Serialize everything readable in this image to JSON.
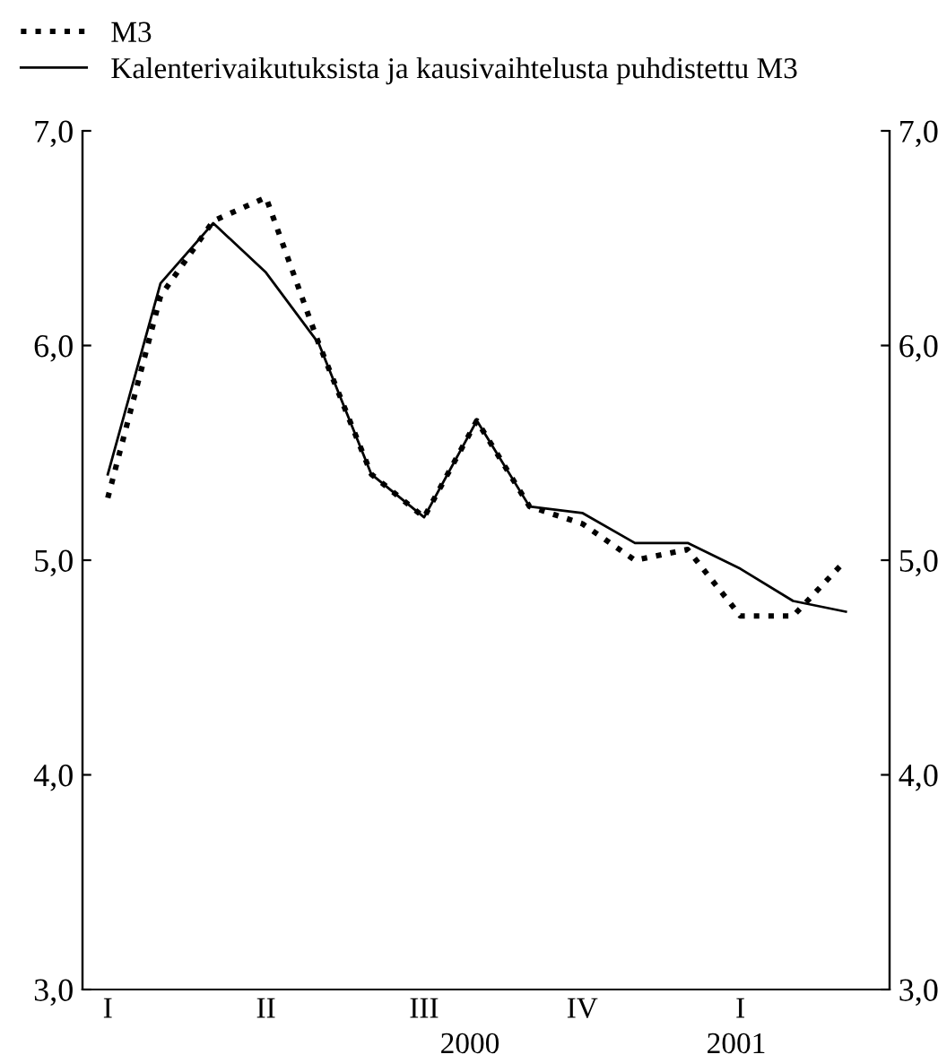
{
  "chart_data": {
    "type": "line",
    "categories": [
      "I",
      null,
      null,
      "II",
      null,
      null,
      "III",
      null,
      null,
      "IV",
      null,
      null,
      "I",
      null,
      null
    ],
    "series": [
      {
        "name": "M3",
        "color": "#000000",
        "line_style": "dotted",
        "values": [
          5.29,
          6.23,
          6.58,
          6.69,
          6.01,
          5.4,
          5.2,
          5.65,
          5.25,
          5.17,
          5.0,
          5.05,
          4.74,
          4.74,
          5.0
        ]
      },
      {
        "name": "Kalenterivaikutuksista ja kausivaihtelusta puhdistettu M3",
        "color": "#000000",
        "line_style": "solid",
        "values": [
          5.4,
          6.29,
          6.57,
          6.34,
          6.01,
          5.4,
          5.2,
          5.65,
          5.25,
          5.22,
          5.08,
          5.08,
          4.96,
          4.81,
          4.76
        ]
      }
    ],
    "ylim": [
      3,
      7
    ],
    "yticks": [
      {
        "value": 3,
        "label": "3,0"
      },
      {
        "value": 4,
        "label": "4,0"
      },
      {
        "value": 5,
        "label": "5,0"
      },
      {
        "value": 6,
        "label": "6,0"
      },
      {
        "value": 7,
        "label": "7,0"
      }
    ],
    "y2lim": [
      3,
      7
    ],
    "y2ticks": [
      {
        "value": 3,
        "label": "3,0"
      },
      {
        "value": 4,
        "label": "4,0"
      },
      {
        "value": 5,
        "label": "5,0"
      },
      {
        "value": 6,
        "label": "6,0"
      },
      {
        "value": 7,
        "label": "7,0"
      }
    ],
    "annotations": [
      "2000",
      "2001"
    ],
    "legend": "top left",
    "grid": false,
    "marker": "none"
  }
}
